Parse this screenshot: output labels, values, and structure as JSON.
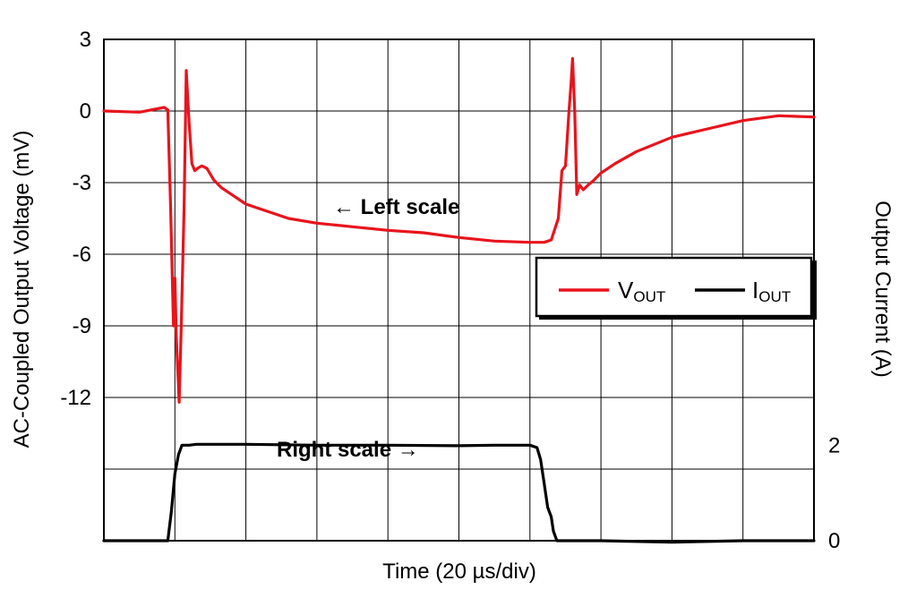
{
  "chart_data": {
    "type": "line",
    "xlabel": "Time (20 µs/div)",
    "ylabel_left": "AC-Coupled Output Voltage (mV)",
    "ylabel_right": "Output Current (A)",
    "x_divisions": 10,
    "xlim": [
      0,
      10
    ],
    "ylim_left": [
      -18,
      3
    ],
    "ylim_right": [
      0,
      10.5
    ],
    "left_ticks": [
      3,
      0,
      -3,
      -6,
      -9,
      -12
    ],
    "left_tick_labels": [
      "3",
      "0",
      "-3",
      "-6",
      "-9",
      "-12"
    ],
    "right_ticks": [
      2,
      0
    ],
    "right_tick_labels": [
      "2",
      "0"
    ],
    "grid": true,
    "legend_position": "right",
    "annotations": [
      {
        "text": "← Left scale"
      },
      {
        "text": "Right scale →"
      }
    ],
    "colors": {
      "vout": "#e8141c",
      "iout": "#000000"
    },
    "series": [
      {
        "name_main": "V",
        "name_sub": "OUT",
        "axis": "left",
        "color": "#e8141c",
        "x": [
          0,
          0.5,
          0.85,
          0.9,
          0.94,
          0.98,
          1.0,
          1.02,
          1.06,
          1.09,
          1.13,
          1.16,
          1.2,
          1.24,
          1.28,
          1.32,
          1.38,
          1.45,
          1.55,
          1.65,
          1.8,
          2.0,
          2.3,
          2.6,
          3.0,
          3.5,
          4.0,
          4.5,
          5.0,
          5.5,
          6.0,
          6.2,
          6.3,
          6.4,
          6.45,
          6.5,
          6.55,
          6.58,
          6.6,
          6.63,
          6.66,
          6.7,
          6.75,
          6.82,
          6.9,
          7.0,
          7.2,
          7.5,
          8.0,
          8.5,
          9.0,
          9.5,
          10.0
        ],
        "y": [
          0.0,
          -0.05,
          0.15,
          0.05,
          -4.0,
          -9.0,
          -7.0,
          -9.5,
          -12.2,
          -9.0,
          -4.0,
          1.7,
          -0.5,
          -2.2,
          -2.5,
          -2.4,
          -2.3,
          -2.4,
          -2.9,
          -3.2,
          -3.5,
          -3.9,
          -4.2,
          -4.5,
          -4.7,
          -4.85,
          -5.0,
          -5.1,
          -5.3,
          -5.45,
          -5.5,
          -5.5,
          -5.4,
          -4.5,
          -2.5,
          -2.3,
          0.0,
          1.2,
          2.2,
          0.0,
          -3.5,
          -3.1,
          -3.3,
          -3.1,
          -2.9,
          -2.6,
          -2.2,
          -1.7,
          -1.1,
          -0.75,
          -0.4,
          -0.2,
          -0.25
        ]
      },
      {
        "name_main": "I",
        "name_sub": "OUT",
        "axis": "right",
        "color": "#000000",
        "x": [
          0,
          0.9,
          0.95,
          1.0,
          1.05,
          1.1,
          1.2,
          1.3,
          2.0,
          3.0,
          4.0,
          5.0,
          5.5,
          6.0,
          6.1,
          6.15,
          6.2,
          6.25,
          6.3,
          6.33,
          6.38,
          7.0,
          8.0,
          9.0,
          10.0
        ],
        "y": [
          0.0,
          0.0,
          0.6,
          1.4,
          1.8,
          2.0,
          2.0,
          2.02,
          2.02,
          2.0,
          2.0,
          1.99,
          2.0,
          2.0,
          1.95,
          1.7,
          1.2,
          0.7,
          0.5,
          0.2,
          0.0,
          0.0,
          -0.03,
          0.0,
          0.0
        ]
      }
    ]
  }
}
